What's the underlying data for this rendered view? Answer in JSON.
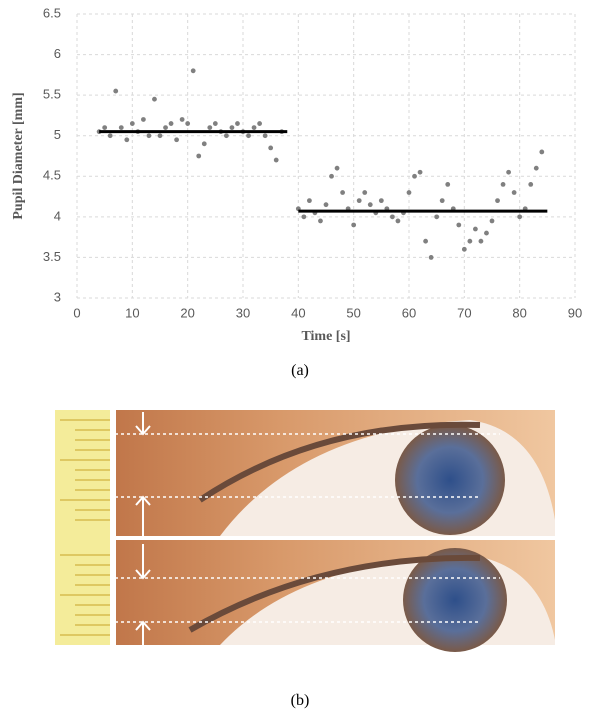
{
  "chart_data": {
    "type": "scatter",
    "xlabel": "Time [s]",
    "ylabel": "Pupil Diameter [mm]",
    "xlim": [
      0,
      90
    ],
    "xticks": [
      0,
      10,
      20,
      30,
      40,
      50,
      60,
      70,
      80,
      90
    ],
    "ylim": [
      3,
      6.5
    ],
    "yticks": [
      3,
      3.5,
      4,
      4.5,
      5,
      5.5,
      6,
      6.5
    ],
    "grid": true,
    "series": [
      {
        "type": "scatter",
        "color": "#808080",
        "x": [
          4,
          5,
          6,
          7,
          8,
          9,
          10,
          11,
          12,
          13,
          14,
          15,
          16,
          17,
          18,
          19,
          20,
          21,
          22,
          23,
          24,
          25,
          26,
          27,
          28,
          29,
          30,
          31,
          32,
          33,
          34,
          35,
          36,
          37
        ],
        "values": [
          5.05,
          5.1,
          5.0,
          5.55,
          5.1,
          4.95,
          5.15,
          5.05,
          5.2,
          5.0,
          5.45,
          5.0,
          5.1,
          5.15,
          4.95,
          5.2,
          5.15,
          5.8,
          4.75,
          4.9,
          5.1,
          5.15,
          5.05,
          5.0,
          5.1,
          5.15,
          5.05,
          5.0,
          5.1,
          5.15,
          5.0,
          4.85,
          4.7,
          5.05
        ]
      },
      {
        "type": "scatter",
        "color": "#808080",
        "x": [
          40,
          41,
          42,
          43,
          44,
          45,
          46,
          47,
          48,
          49,
          50,
          51,
          52,
          53,
          54,
          55,
          56,
          57,
          58,
          59,
          60,
          61,
          62,
          63,
          64,
          65,
          66,
          67,
          68,
          69,
          70,
          71,
          72,
          73,
          74,
          75,
          76,
          77,
          78,
          79,
          80,
          81,
          82,
          83,
          84
        ],
        "values": [
          4.1,
          4.0,
          4.2,
          4.05,
          3.95,
          4.15,
          4.5,
          4.6,
          4.3,
          4.1,
          3.9,
          4.2,
          4.3,
          4.15,
          4.05,
          4.2,
          4.1,
          4.0,
          3.95,
          4.05,
          4.3,
          4.5,
          4.55,
          3.7,
          3.5,
          4.0,
          4.2,
          4.4,
          4.1,
          3.9,
          3.6,
          3.7,
          3.85,
          3.7,
          3.8,
          3.95,
          4.2,
          4.4,
          4.55,
          4.3,
          4.0,
          4.1,
          4.4,
          4.6,
          4.8
        ]
      },
      {
        "type": "line",
        "color": "#000000",
        "x": [
          4,
          38
        ],
        "values": [
          5.05,
          5.05
        ]
      },
      {
        "type": "line",
        "color": "#000000",
        "x": [
          40,
          85
        ],
        "values": [
          4.07,
          4.07
        ]
      }
    ]
  },
  "captions": [
    "(a)",
    "(b)"
  ]
}
